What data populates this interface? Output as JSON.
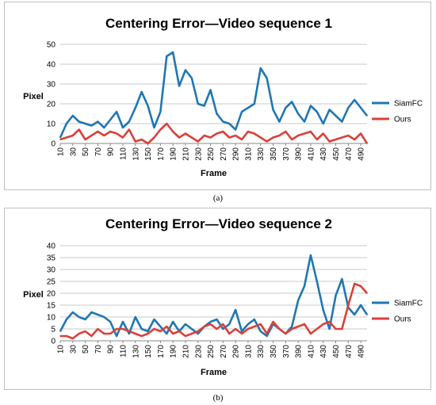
{
  "chart_data": [
    {
      "type": "line",
      "title": "Centering Error—Video sequence 1",
      "xlabel": "Frame",
      "ylabel": "Pixel",
      "ylim": [
        0,
        50
      ],
      "yticks": [
        "0",
        "10",
        "20",
        "30",
        "40",
        "50"
      ],
      "x": [
        10,
        20,
        30,
        40,
        50,
        60,
        70,
        80,
        90,
        100,
        110,
        120,
        130,
        140,
        150,
        160,
        170,
        180,
        190,
        200,
        210,
        220,
        230,
        240,
        250,
        260,
        270,
        280,
        290,
        300,
        310,
        320,
        330,
        340,
        350,
        360,
        370,
        380,
        390,
        400,
        410,
        420,
        430,
        440,
        450,
        460,
        470,
        480,
        490,
        500
      ],
      "x_tick_labels": [
        "10",
        "30",
        "50",
        "70",
        "90",
        "110",
        "130",
        "150",
        "170",
        "190",
        "210",
        "230",
        "250",
        "270",
        "290",
        "310",
        "330",
        "350",
        "370",
        "390",
        "410",
        "430",
        "450",
        "470",
        "490"
      ],
      "grid": true,
      "legend_position": "right",
      "series": [
        {
          "name": "SiamFC",
          "color": "#1f77b4",
          "values": [
            3,
            10,
            14,
            11,
            10,
            9,
            11,
            8,
            12,
            16,
            8,
            11,
            18,
            26,
            19,
            8,
            16,
            44,
            46,
            29,
            37,
            33,
            20,
            19,
            27,
            15,
            11,
            10,
            7,
            16,
            18,
            20,
            38,
            33,
            17,
            11,
            18,
            21,
            15,
            11,
            19,
            16,
            10,
            17,
            14,
            11,
            18,
            22,
            18,
            14
          ]
        },
        {
          "name": "Ours",
          "color": "#d9413a",
          "values": [
            2,
            3,
            4,
            7,
            2,
            4,
            6,
            4,
            6,
            5,
            3,
            7,
            1,
            2,
            0,
            3,
            7,
            10,
            6,
            3,
            5,
            3,
            1,
            4,
            3,
            5,
            6,
            3,
            4,
            2,
            6,
            5,
            3,
            1,
            3,
            4,
            6,
            2,
            4,
            5,
            6,
            2,
            5,
            1,
            2,
            3,
            4,
            2,
            5,
            0
          ]
        }
      ]
    },
    {
      "type": "line",
      "title": "Centering Error—Video sequence 2",
      "xlabel": "Frame",
      "ylabel": "Pixel",
      "ylim": [
        0,
        40
      ],
      "yticks": [
        "0",
        "5",
        "10",
        "15",
        "20",
        "25",
        "30",
        "35",
        "40"
      ],
      "x": [
        10,
        20,
        30,
        40,
        50,
        60,
        70,
        80,
        90,
        100,
        110,
        120,
        130,
        140,
        150,
        160,
        170,
        180,
        190,
        200,
        210,
        220,
        230,
        240,
        250,
        260,
        270,
        280,
        290,
        300,
        310,
        320,
        330,
        340,
        350,
        360,
        370,
        380,
        390,
        400,
        410,
        420,
        430,
        440,
        450,
        460,
        470,
        480,
        490,
        500
      ],
      "x_tick_labels": [
        "10",
        "30",
        "50",
        "70",
        "90",
        "110",
        "130",
        "150",
        "170",
        "190",
        "210",
        "230",
        "250",
        "270",
        "290",
        "310",
        "330",
        "350",
        "370",
        "390",
        "410",
        "430",
        "450",
        "470",
        "490"
      ],
      "grid": true,
      "legend_position": "right",
      "series": [
        {
          "name": "SiamFC",
          "color": "#1f77b4",
          "values": [
            4,
            9,
            12,
            10,
            9,
            12,
            11,
            10,
            8,
            2,
            8,
            3,
            10,
            5,
            4,
            9,
            6,
            3,
            8,
            4,
            7,
            5,
            3,
            6,
            8,
            9,
            5,
            7,
            13,
            4,
            7,
            9,
            4,
            2,
            7,
            5,
            3,
            6,
            17,
            23,
            36,
            25,
            13,
            5,
            19,
            26,
            14,
            11,
            15,
            11
          ]
        },
        {
          "name": "Ours",
          "color": "#d9413a",
          "values": [
            2,
            2,
            1,
            3,
            4,
            2,
            5,
            3,
            3,
            5,
            5,
            4,
            3,
            2,
            3,
            5,
            4,
            6,
            3,
            4,
            2,
            3,
            4,
            6,
            7,
            5,
            7,
            3,
            5,
            3,
            5,
            6,
            7,
            3,
            8,
            5,
            3,
            5,
            6,
            7,
            3,
            5,
            7,
            8,
            5,
            5,
            15,
            24,
            23,
            20
          ]
        }
      ]
    }
  ],
  "captions": {
    "a": "(a)",
    "b": "(b)"
  }
}
